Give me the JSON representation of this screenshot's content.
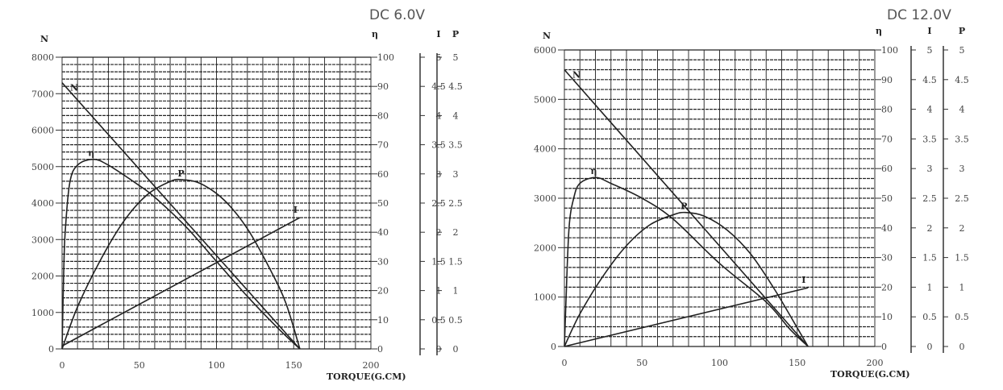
{
  "chart_data": [
    {
      "type": "line",
      "title": "DC 6.0V",
      "xlabel": "TORQUE(G.CM)",
      "xlim": [
        0,
        200
      ],
      "xticks": [
        0,
        50,
        100,
        150,
        200
      ],
      "axes": {
        "N": {
          "label": "N",
          "range": [
            0,
            8000
          ],
          "ticks": [
            0,
            1000,
            2000,
            3000,
            4000,
            5000,
            6000,
            7000,
            8000
          ]
        },
        "eta": {
          "label": "η",
          "range": [
            0,
            100
          ],
          "ticks": [
            0,
            10,
            20,
            30,
            40,
            50,
            60,
            70,
            80,
            90,
            100
          ]
        },
        "I": {
          "label": "I",
          "range": [
            0,
            5
          ],
          "ticks": [
            "0",
            "0.5",
            "1",
            "1.5",
            "2",
            "2.5",
            "3",
            "3.5",
            "4",
            "4.5",
            "5"
          ]
        },
        "P": {
          "label": "P",
          "range": [
            0,
            5
          ],
          "ticks": [
            "0",
            "0.5",
            "1",
            "1.5",
            "2",
            "2.5",
            "3",
            "3.5",
            "4",
            "4.5",
            "5"
          ]
        }
      },
      "grid": true,
      "series": [
        {
          "name": "N",
          "axis": "N",
          "x": [
            0,
            154
          ],
          "y": [
            7300,
            0
          ]
        },
        {
          "name": "η",
          "axis": "eta",
          "x": [
            0,
            1,
            2,
            5,
            10,
            20,
            30,
            50,
            60,
            80,
            100,
            120,
            140,
            154
          ],
          "y": [
            0,
            25,
            40,
            57,
            63,
            65,
            63,
            56,
            52,
            42,
            30,
            18,
            7,
            0
          ]
        },
        {
          "name": "P",
          "axis": "P",
          "x": [
            0,
            10,
            25,
            40,
            55,
            70,
            78,
            90,
            105,
            120,
            135,
            145,
            154
          ],
          "y": [
            0,
            0.72,
            1.53,
            2.19,
            2.64,
            2.87,
            2.9,
            2.83,
            2.55,
            2.06,
            1.35,
            0.78,
            0
          ]
        },
        {
          "name": "I",
          "axis": "I",
          "x": [
            0,
            154
          ],
          "y": [
            0.05,
            2.25
          ]
        }
      ]
    },
    {
      "type": "line",
      "title": "DC 12.0V",
      "xlabel": "TORQUE(G.CM)",
      "xlim": [
        0,
        200
      ],
      "xticks": [
        0,
        50,
        100,
        150,
        200
      ],
      "axes": {
        "N": {
          "label": "N",
          "range": [
            0,
            6000
          ],
          "ticks": [
            0,
            1000,
            2000,
            3000,
            4000,
            5000,
            6000
          ]
        },
        "eta": {
          "label": "η",
          "range": [
            0,
            100
          ],
          "ticks": [
            0,
            10,
            20,
            30,
            40,
            50,
            60,
            70,
            80,
            90,
            100
          ]
        },
        "I": {
          "label": "I",
          "range": [
            0,
            5
          ],
          "ticks": [
            "0",
            "0.5",
            "1",
            "1.5",
            "2",
            "2.5",
            "3",
            "3.5",
            "4",
            "4.5",
            "5"
          ]
        },
        "P": {
          "label": "P",
          "range": [
            0,
            5
          ],
          "ticks": [
            "0",
            "0.5",
            "1",
            "1.5",
            "2",
            "2.5",
            "3",
            "3.5",
            "4",
            "4.5",
            "5"
          ]
        }
      },
      "grid": true,
      "series": [
        {
          "name": "N",
          "axis": "N",
          "x": [
            0,
            157
          ],
          "y": [
            5600,
            0
          ]
        },
        {
          "name": "η",
          "axis": "eta",
          "x": [
            0,
            1,
            3,
            6,
            10,
            20,
            30,
            50,
            70,
            100,
            130,
            145,
            157
          ],
          "y": [
            0,
            15,
            40,
            50,
            55,
            57,
            55,
            50,
            43,
            28,
            15,
            6,
            0
          ]
        },
        {
          "name": "P",
          "axis": "P",
          "x": [
            0,
            10,
            25,
            40,
            55,
            70,
            78,
            90,
            105,
            120,
            135,
            147,
            157
          ],
          "y": [
            0,
            0.55,
            1.19,
            1.7,
            2.05,
            2.22,
            2.26,
            2.2,
            1.96,
            1.56,
            0.98,
            0.45,
            0
          ]
        },
        {
          "name": "I",
          "axis": "I",
          "x": [
            0,
            157
          ],
          "y": [
            0,
            0.99
          ]
        }
      ]
    }
  ]
}
